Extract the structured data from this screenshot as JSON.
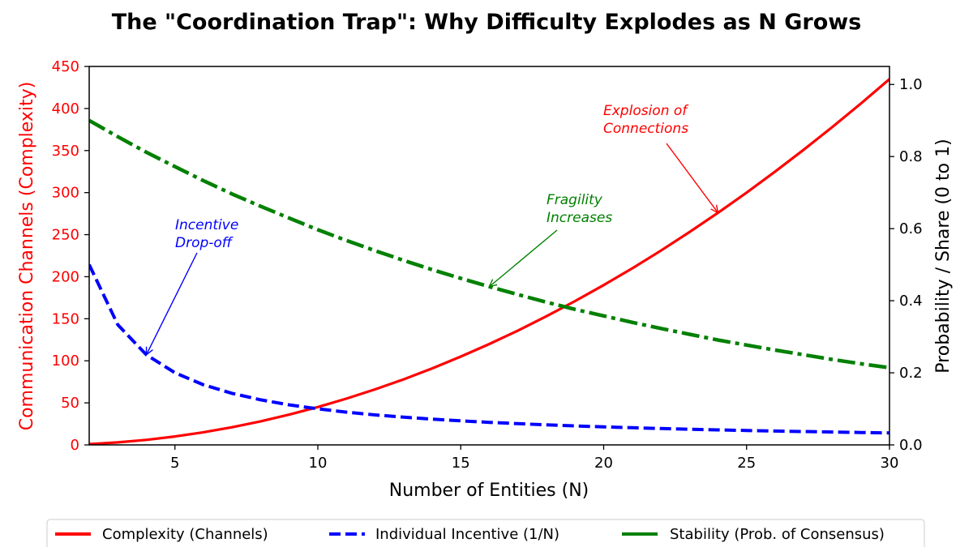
{
  "chart_data": {
    "type": "line",
    "title": "The \"Coordination Trap\": Why Difficulty Explodes as N Grows",
    "xlabel": "Number of Entities (N)",
    "ylabel_left": "Communication Channels (Complexity)",
    "ylabel_right": "Probability / Share (0 to 1)",
    "xlim": [
      2,
      30
    ],
    "ylim_left": [
      0,
      450
    ],
    "ylim_right": [
      0,
      1.05
    ],
    "x_ticks": [
      5,
      10,
      15,
      20,
      25,
      30
    ],
    "y_ticks_left": [
      0,
      50,
      100,
      150,
      200,
      250,
      300,
      350,
      400,
      450
    ],
    "y_ticks_right": [
      "0.0",
      "0.2",
      "0.4",
      "0.6",
      "0.8",
      "1.0"
    ],
    "colors": {
      "complexity": "#ff0000",
      "incentive": "#0000ff",
      "stability": "#008000"
    },
    "series": [
      {
        "name": "Complexity (Channels)",
        "axis": "left",
        "style": "solid",
        "x": [
          2,
          3,
          4,
          5,
          6,
          7,
          8,
          9,
          10,
          11,
          12,
          13,
          14,
          15,
          16,
          17,
          18,
          19,
          20,
          21,
          22,
          23,
          24,
          25,
          26,
          27,
          28,
          29,
          30
        ],
        "values": [
          1,
          3,
          6,
          10,
          15,
          21,
          28,
          36,
          45,
          55,
          66,
          78,
          91,
          105,
          120,
          136,
          153,
          171,
          190,
          210,
          231,
          253,
          276,
          300,
          325,
          351,
          378,
          406,
          435
        ]
      },
      {
        "name": "Individual Incentive (1/N)",
        "axis": "right",
        "style": "dashed",
        "x": [
          2,
          3,
          4,
          5,
          6,
          7,
          8,
          9,
          10,
          11,
          12,
          13,
          14,
          15,
          16,
          17,
          18,
          19,
          20,
          21,
          22,
          23,
          24,
          25,
          26,
          27,
          28,
          29,
          30
        ],
        "values": [
          0.5,
          0.3333,
          0.25,
          0.2,
          0.1667,
          0.1429,
          0.125,
          0.1111,
          0.1,
          0.0909,
          0.0833,
          0.0769,
          0.0714,
          0.0667,
          0.0625,
          0.0588,
          0.0556,
          0.0526,
          0.05,
          0.0476,
          0.0455,
          0.0435,
          0.0417,
          0.04,
          0.0385,
          0.037,
          0.0357,
          0.0345,
          0.0333
        ]
      },
      {
        "name": "Stability (Prob. of Consensus)",
        "axis": "right",
        "style": "dashdot",
        "x": [
          2,
          3,
          4,
          5,
          6,
          7,
          8,
          9,
          10,
          11,
          12,
          13,
          14,
          15,
          16,
          17,
          18,
          19,
          20,
          21,
          22,
          23,
          24,
          25,
          26,
          27,
          28,
          29,
          30
        ],
        "values": [
          0.9,
          0.855,
          0.812,
          0.772,
          0.733,
          0.696,
          0.662,
          0.629,
          0.597,
          0.567,
          0.539,
          0.512,
          0.486,
          0.462,
          0.439,
          0.417,
          0.396,
          0.376,
          0.358,
          0.34,
          0.323,
          0.307,
          0.291,
          0.277,
          0.263,
          0.25,
          0.237,
          0.225,
          0.214
        ]
      }
    ],
    "annotations": [
      {
        "id": "explosion",
        "line1": "Explosion of",
        "line2": "Connections",
        "color": "#ff0000",
        "point_x": 24,
        "point_y": 276,
        "axis": "left"
      },
      {
        "id": "fragility",
        "line1": "Fragility",
        "line2": "Increases",
        "color": "#008000",
        "point_x": 16,
        "point_y": 0.439,
        "axis": "right"
      },
      {
        "id": "incentive",
        "line1": "Incentive",
        "line2": "Drop-off",
        "color": "#0000ff",
        "point_x": 4,
        "point_y": 0.25,
        "axis": "right"
      }
    ],
    "legend": {
      "placement": "bottom-center",
      "entries": [
        "Complexity (Channels)",
        "Individual Incentive (1/N)",
        "Stability (Prob. of Consensus)"
      ]
    }
  }
}
